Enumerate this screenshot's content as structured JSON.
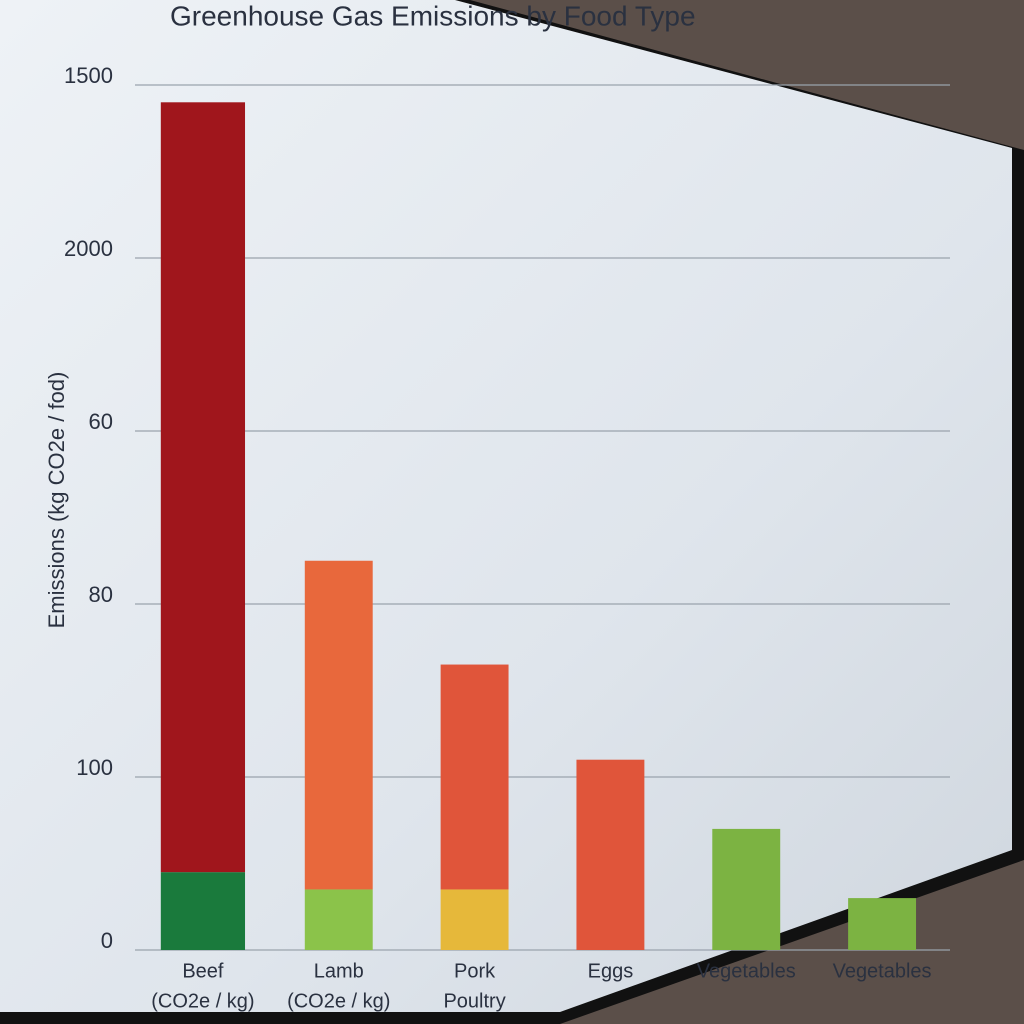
{
  "chart_data": {
    "type": "stacked_bar",
    "title": "Greenhouse Gas Emissions by Food Type",
    "y_label": "Emissions (kg CO2e / fod)",
    "categories": [
      [
        "Beef",
        "(CO2e / kg)"
      ],
      [
        "Lamb",
        "(CO2e / kg)"
      ],
      [
        "Pork",
        "Poultry"
      ],
      [
        "Eggs"
      ],
      [
        "Vegetables"
      ],
      [
        "Vegetables"
      ]
    ],
    "series": [
      {
        "colors": [
          "#1a7a3c",
          "#8bc34a",
          "#e6b83a",
          null,
          null,
          null
        ],
        "values": [
          0.45,
          0.35,
          0.35,
          null,
          null,
          null
        ]
      },
      {
        "colors": [
          "#a0161c",
          "#e8683c",
          "#e0553a",
          "#e0553a",
          "#7cb342",
          "#7cb342"
        ],
        "values": [
          4.45,
          1.9,
          1.3,
          1.1,
          0.7,
          0.3
        ]
      }
    ],
    "ylim": [
      0,
      5
    ],
    "yticks": [
      {
        "value": 0,
        "label": "0"
      },
      {
        "value": 1,
        "label": "100"
      },
      {
        "value": 2,
        "label": "80"
      },
      {
        "value": 3,
        "label": "60"
      },
      {
        "value": 4,
        "label": "2000"
      },
      {
        "value": 5,
        "label": "1500"
      }
    ],
    "grid": true
  }
}
